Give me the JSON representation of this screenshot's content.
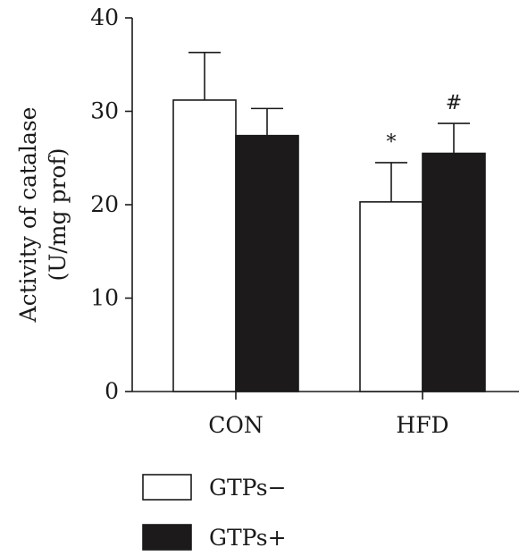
{
  "chart_data": {
    "type": "bar",
    "ylabel_lines": [
      "Activity of catalase",
      "(U/mg prof)"
    ],
    "categories": [
      "CON",
      "HFD"
    ],
    "yticks": [
      0,
      10,
      20,
      30,
      40
    ],
    "ylim": [
      0,
      40
    ],
    "series": [
      {
        "name": "GTPs−",
        "fill": "#ffffff",
        "values": [
          31.2,
          20.3
        ],
        "errors": [
          5.1,
          4.2
        ],
        "annotations": [
          "",
          "*"
        ]
      },
      {
        "name": "GTPs+",
        "fill": "#1c1a1b",
        "values": [
          27.4,
          25.5
        ],
        "errors": [
          2.9,
          3.2
        ],
        "annotations": [
          "",
          "#"
        ]
      }
    ],
    "legend_placement": "bottom",
    "grid": false
  }
}
